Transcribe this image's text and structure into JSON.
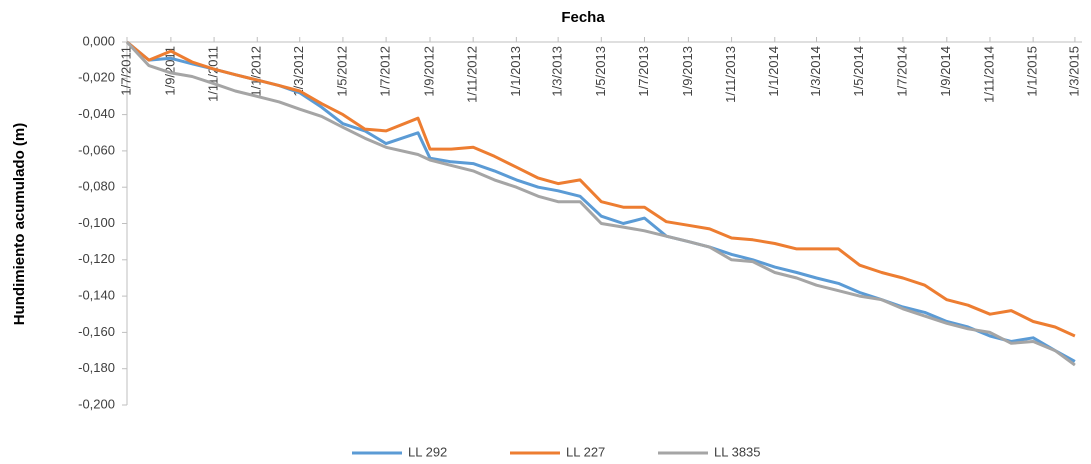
{
  "chart_data": {
    "type": "line",
    "title": "Fecha",
    "y_label": "Hundimiento acumulado (m)",
    "x": [
      "1/7/2011",
      "1/8/2011",
      "1/9/2011",
      "1/10/2011",
      "1/11/2011",
      "1/12/2011",
      "1/1/2012",
      "1/2/2012",
      "1/3/2012",
      "1/4/2012",
      "1/5/2012",
      "1/6/2012",
      "1/7/2012",
      "15/8/2012",
      "1/9/2012",
      "1/10/2012",
      "1/11/2012",
      "1/12/2012",
      "1/1/2013",
      "1/2/2013",
      "1/3/2013",
      "1/4/2013",
      "1/5/2013",
      "1/6/2013",
      "1/7/2013",
      "1/8/2013",
      "1/9/2013",
      "1/10/2013",
      "1/11/2013",
      "1/12/2013",
      "1/1/2014",
      "1/2/2014",
      "1/3/2014",
      "1/4/2014",
      "1/5/2014",
      "1/6/2014",
      "1/7/2014",
      "1/8/2014",
      "1/9/2014",
      "1/10/2014",
      "1/11/2014",
      "1/12/2014",
      "1/1/2015",
      "1/2/2015",
      "1/3/2015"
    ],
    "series": [
      {
        "name": "LL 292",
        "color": "#5b9bd5",
        "values": [
          0,
          -0.01,
          -0.009,
          -0.012,
          -0.015,
          -0.018,
          -0.021,
          -0.024,
          -0.028,
          -0.036,
          -0.045,
          -0.049,
          -0.056,
          -0.05,
          -0.064,
          -0.066,
          -0.067,
          -0.071,
          -0.076,
          -0.08,
          -0.082,
          -0.085,
          -0.096,
          -0.1,
          -0.097,
          -0.107,
          -0.11,
          -0.113,
          -0.117,
          -0.12,
          -0.124,
          -0.127,
          -0.13,
          -0.133,
          -0.138,
          -0.142,
          -0.146,
          -0.149,
          -0.154,
          -0.157,
          -0.162,
          -0.165,
          -0.163,
          -0.17,
          -0.176
        ]
      },
      {
        "name": "LL 227",
        "color": "#ed7d31",
        "values": [
          0,
          -0.01,
          -0.005,
          -0.011,
          -0.015,
          -0.018,
          -0.021,
          -0.024,
          -0.027,
          -0.034,
          -0.04,
          -0.048,
          -0.049,
          -0.042,
          -0.059,
          -0.059,
          -0.058,
          -0.063,
          -0.069,
          -0.075,
          -0.078,
          -0.076,
          -0.088,
          -0.091,
          -0.091,
          -0.099,
          -0.101,
          -0.103,
          -0.108,
          -0.109,
          -0.111,
          -0.114,
          -0.114,
          -0.114,
          -0.123,
          -0.127,
          -0.13,
          -0.134,
          -0.142,
          -0.145,
          -0.15,
          -0.148,
          -0.154,
          -0.157,
          -0.162
        ]
      },
      {
        "name": "LL 3835",
        "color": "#a5a5a5",
        "values": [
          0,
          -0.013,
          -0.017,
          -0.019,
          -0.023,
          -0.027,
          -0.03,
          -0.033,
          -0.037,
          -0.041,
          -0.047,
          -0.053,
          -0.058,
          -0.062,
          -0.065,
          -0.068,
          -0.071,
          -0.076,
          -0.08,
          -0.085,
          -0.088,
          -0.088,
          -0.1,
          -0.102,
          -0.104,
          -0.107,
          -0.11,
          -0.113,
          -0.12,
          -0.121,
          -0.127,
          -0.13,
          -0.134,
          -0.137,
          -0.14,
          -0.142,
          -0.147,
          -0.151,
          -0.155,
          -0.158,
          -0.16,
          -0.166,
          -0.165,
          -0.17,
          -0.178
        ]
      }
    ],
    "xlim": [
      "1/7/2011",
      "11/3/2015"
    ],
    "xticks": [
      "1/7/2011",
      "1/9/2011",
      "1/11/2011",
      "1/1/2012",
      "1/3/2012",
      "1/5/2012",
      "1/7/2012",
      "1/9/2012",
      "1/11/2012",
      "1/1/2013",
      "1/3/2013",
      "1/5/2013",
      "1/7/2013",
      "1/9/2013",
      "1/11/2013",
      "1/1/2014",
      "1/3/2014",
      "1/5/2014",
      "1/7/2014",
      "1/9/2014",
      "1/11/2014",
      "1/1/2015",
      "1/3/2015"
    ],
    "ylim": [
      -0.2,
      0
    ],
    "yticks": [
      {
        "value": 0,
        "label": "0,000"
      },
      {
        "value": -0.02,
        "label": "-0,020"
      },
      {
        "value": -0.04,
        "label": "-0,040"
      },
      {
        "value": -0.06,
        "label": "-0,060"
      },
      {
        "value": -0.08,
        "label": "-0,080"
      },
      {
        "value": -0.1,
        "label": "-0,100"
      },
      {
        "value": -0.12,
        "label": "-0,120"
      },
      {
        "value": -0.14,
        "label": "-0,140"
      },
      {
        "value": -0.16,
        "label": "-0,160"
      },
      {
        "value": -0.18,
        "label": "-0,180"
      },
      {
        "value": -0.2,
        "label": "-0,200"
      }
    ],
    "legend": "bottom"
  }
}
